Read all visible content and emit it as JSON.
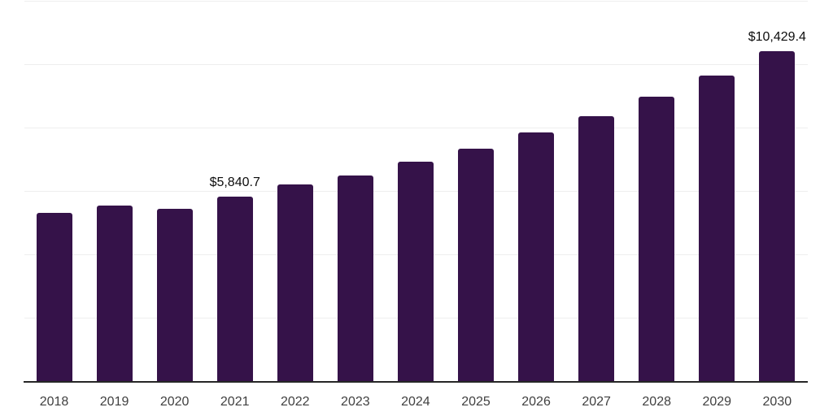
{
  "chart_data": {
    "type": "bar",
    "title": "",
    "xlabel": "",
    "ylabel": "",
    "categories": [
      "2018",
      "2019",
      "2020",
      "2021",
      "2022",
      "2023",
      "2024",
      "2025",
      "2026",
      "2027",
      "2028",
      "2029",
      "2030"
    ],
    "values": [
      5325,
      5560,
      5460,
      5840.7,
      6230,
      6520,
      6945,
      7350,
      7860,
      8390,
      9010,
      9665,
      10429.4
    ],
    "data_labels": [
      {
        "category": "2021",
        "text": "$5,840.7"
      },
      {
        "category": "2030",
        "text": "$10,429.4"
      }
    ],
    "ylim": [
      0,
      12000
    ],
    "ytick_step": 2000,
    "grid": true,
    "legend": false,
    "y_axis_labels_visible": false,
    "colors": {
      "bar": "#351249",
      "axis_line": "#262626",
      "gridline": "#eeeeee",
      "tick_label": "#404040",
      "data_label": "#0d0d0d"
    }
  }
}
